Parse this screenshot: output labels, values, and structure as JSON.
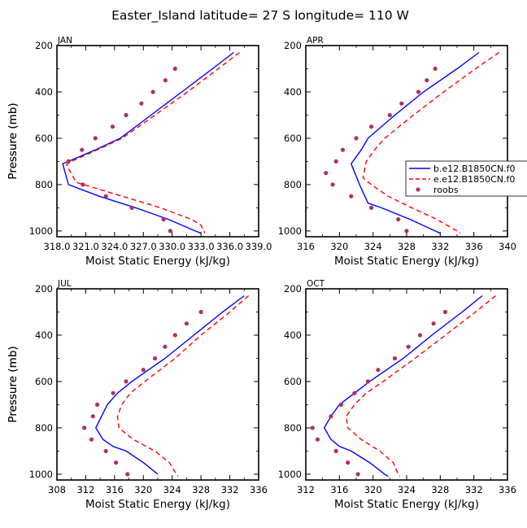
{
  "title": "Easter_Island   latitude= 27 S longitude= 110 W",
  "legend": {
    "entries": [
      {
        "label": "b.e12.B1850CN.f0",
        "color": "#0000ff",
        "style": "solid"
      },
      {
        "label": "e.e12.B1850CN.f0",
        "color": "#ff0000",
        "style": "dashed"
      },
      {
        "label": "roobs",
        "color": "#b03060",
        "style": "marker"
      }
    ]
  },
  "chart_data": [
    {
      "type": "line",
      "panel_label": "JAN",
      "xlabel": "Moist Static Energy (kJ/kg)",
      "ylabel": "Pressure (mb)",
      "xlim": [
        318.0,
        339.0
      ],
      "ylim": [
        1025,
        200
      ],
      "xticks": [
        318.0,
        321.0,
        324.0,
        327.0,
        330.0,
        333.0,
        336.0,
        339.0
      ],
      "xtick_labels": [
        "318.0",
        "321.0",
        "324.0",
        "327.0",
        "330.0",
        "333.0",
        "336.0",
        "339.0"
      ],
      "yticks": [
        200,
        400,
        600,
        800,
        1000
      ],
      "ytick_labels": [
        "200",
        "400",
        "600",
        "800",
        "1000"
      ],
      "series": [
        {
          "name": "b.e12.B1850CN.f0",
          "p": [
            230,
            300,
            400,
            500,
            600,
            650,
            700,
            710,
            800,
            850,
            900,
            950,
            1000,
            1010
          ],
          "values": [
            336.4,
            334.2,
            331.0,
            327.8,
            324.6,
            322.0,
            319.2,
            318.6,
            319.2,
            322.4,
            326.2,
            329.6,
            332.4,
            333.0
          ]
        },
        {
          "name": "e.e12.B1850CN.f0",
          "p": [
            230,
            300,
            400,
            500,
            600,
            650,
            700,
            715,
            790,
            850,
            900,
            950,
            975,
            1010
          ],
          "values": [
            337.0,
            334.8,
            331.6,
            328.2,
            324.8,
            322.2,
            319.5,
            319.0,
            320.0,
            324.8,
            328.8,
            332.0,
            333.0,
            333.4
          ]
        },
        {
          "name": "roobs",
          "p": [
            300,
            350,
            400,
            450,
            500,
            550,
            600,
            650,
            700,
            800,
            850,
            900,
            950,
            1000
          ],
          "values": [
            330.3,
            329.3,
            328.0,
            326.8,
            325.2,
            323.8,
            322.0,
            320.6,
            319.2,
            320.7,
            323.1,
            325.8,
            329.1,
            329.8
          ]
        }
      ]
    },
    {
      "type": "line",
      "panel_label": "APR",
      "xlabel": "Moist Static Energy (kJ/kg)",
      "ylabel": "Pressure (mb)",
      "xlim": [
        316,
        340
      ],
      "ylim": [
        1025,
        200
      ],
      "xticks": [
        316,
        320,
        324,
        328,
        332,
        336,
        340
      ],
      "xtick_labels": [
        "316",
        "320",
        "324",
        "328",
        "332",
        "336",
        "340"
      ],
      "yticks": [
        200,
        400,
        600,
        800,
        1000
      ],
      "ytick_labels": [
        "200",
        "400",
        "600",
        "800",
        "1000"
      ],
      "series": [
        {
          "name": "b.e12.B1850CN.f0",
          "p": [
            230,
            300,
            400,
            500,
            600,
            650,
            700,
            710,
            800,
            880,
            900,
            950,
            1000,
            1010
          ],
          "values": [
            336.6,
            334.0,
            330.0,
            326.6,
            323.4,
            322.6,
            321.6,
            321.4,
            322.4,
            323.4,
            325.0,
            328.4,
            331.4,
            332.0
          ]
        },
        {
          "name": "e.e12.B1850CN.f0",
          "p": [
            230,
            300,
            400,
            500,
            600,
            650,
            700,
            770,
            800,
            850,
            900,
            950,
            1000,
            1010
          ],
          "values": [
            339.0,
            336.2,
            332.4,
            328.8,
            325.4,
            324.2,
            323.2,
            322.8,
            323.8,
            325.8,
            328.6,
            331.6,
            334.0,
            334.4
          ]
        },
        {
          "name": "roobs",
          "p": [
            300,
            350,
            400,
            450,
            500,
            550,
            600,
            650,
            700,
            750,
            800,
            850,
            900,
            950,
            1000
          ],
          "values": [
            331.4,
            330.4,
            329.4,
            327.4,
            326.0,
            323.8,
            322.0,
            320.4,
            319.6,
            318.4,
            319.2,
            321.4,
            323.8,
            327.0,
            328.0
          ]
        }
      ]
    },
    {
      "type": "line",
      "panel_label": "JUL",
      "xlabel": "Moist Static Energy (kJ/kg)",
      "ylabel": "Pressure (mb)",
      "xlim": [
        308,
        336
      ],
      "ylim": [
        1025,
        200
      ],
      "xticks": [
        308,
        312,
        316,
        320,
        324,
        328,
        332,
        336
      ],
      "xtick_labels": [
        "308",
        "312",
        "316",
        "320",
        "324",
        "328",
        "332",
        "336"
      ],
      "yticks": [
        200,
        400,
        600,
        800,
        1000
      ],
      "ytick_labels": [
        "200",
        "400",
        "600",
        "800",
        "1000"
      ],
      "series": [
        {
          "name": "b.e12.B1850CN.f0",
          "p": [
            230,
            300,
            400,
            500,
            600,
            650,
            700,
            750,
            800,
            850,
            880,
            900,
            950,
            1000
          ],
          "values": [
            334.0,
            331.0,
            327.0,
            323.0,
            318.4,
            316.4,
            315.0,
            314.2,
            313.4,
            314.4,
            315.8,
            317.6,
            320.0,
            322.0
          ]
        },
        {
          "name": "e.e12.B1850CN.f0",
          "p": [
            230,
            300,
            400,
            500,
            600,
            650,
            700,
            750,
            800,
            850,
            900,
            950,
            1000,
            1010
          ],
          "values": [
            334.6,
            332.0,
            328.0,
            324.4,
            320.2,
            318.2,
            317.0,
            316.4,
            316.6,
            318.6,
            321.6,
            323.6,
            324.6,
            324.8
          ]
        },
        {
          "name": "roobs",
          "p": [
            300,
            350,
            400,
            450,
            500,
            550,
            600,
            650,
            700,
            750,
            800,
            850,
            900,
            950,
            1000
          ],
          "values": [
            328.0,
            326.0,
            324.4,
            323.0,
            321.6,
            320.0,
            317.6,
            315.8,
            313.6,
            313.0,
            311.8,
            312.8,
            314.8,
            316.2,
            317.8
          ]
        }
      ]
    },
    {
      "type": "line",
      "panel_label": "OCT",
      "xlabel": "Moist Static Energy (kJ/kg)",
      "ylabel": "Pressure (mb)",
      "xlim": [
        312,
        336
      ],
      "ylim": [
        1025,
        200
      ],
      "xticks": [
        312,
        316,
        320,
        324,
        328,
        332,
        336
      ],
      "xtick_labels": [
        "312",
        "316",
        "320",
        "324",
        "328",
        "332",
        "336"
      ],
      "yticks": [
        200,
        400,
        600,
        800,
        1000
      ],
      "ytick_labels": [
        "200",
        "400",
        "600",
        "800",
        "1000"
      ],
      "series": [
        {
          "name": "b.e12.B1850CN.f0",
          "p": [
            230,
            300,
            400,
            500,
            600,
            650,
            700,
            750,
            800,
            850,
            880,
            900,
            950,
            1000,
            1010
          ],
          "values": [
            333.0,
            330.6,
            327.0,
            323.6,
            319.6,
            317.8,
            316.0,
            315.0,
            314.2,
            315.0,
            316.0,
            317.4,
            319.6,
            321.4,
            321.8
          ]
        },
        {
          "name": "e.e12.B1850CN.f0",
          "p": [
            230,
            300,
            400,
            500,
            600,
            650,
            700,
            750,
            800,
            850,
            900,
            950,
            1000,
            1010
          ],
          "values": [
            334.6,
            332.2,
            328.6,
            325.0,
            321.2,
            319.2,
            317.8,
            316.8,
            317.0,
            318.6,
            320.8,
            322.4,
            323.0,
            323.2
          ]
        },
        {
          "name": "roobs",
          "p": [
            300,
            350,
            400,
            450,
            500,
            550,
            600,
            650,
            700,
            750,
            800,
            850,
            900,
            950,
            1000
          ],
          "values": [
            328.6,
            327.2,
            325.6,
            324.2,
            322.6,
            320.6,
            319.4,
            317.8,
            316.2,
            315.0,
            312.8,
            313.4,
            315.6,
            317.0,
            318.2
          ]
        }
      ]
    }
  ]
}
